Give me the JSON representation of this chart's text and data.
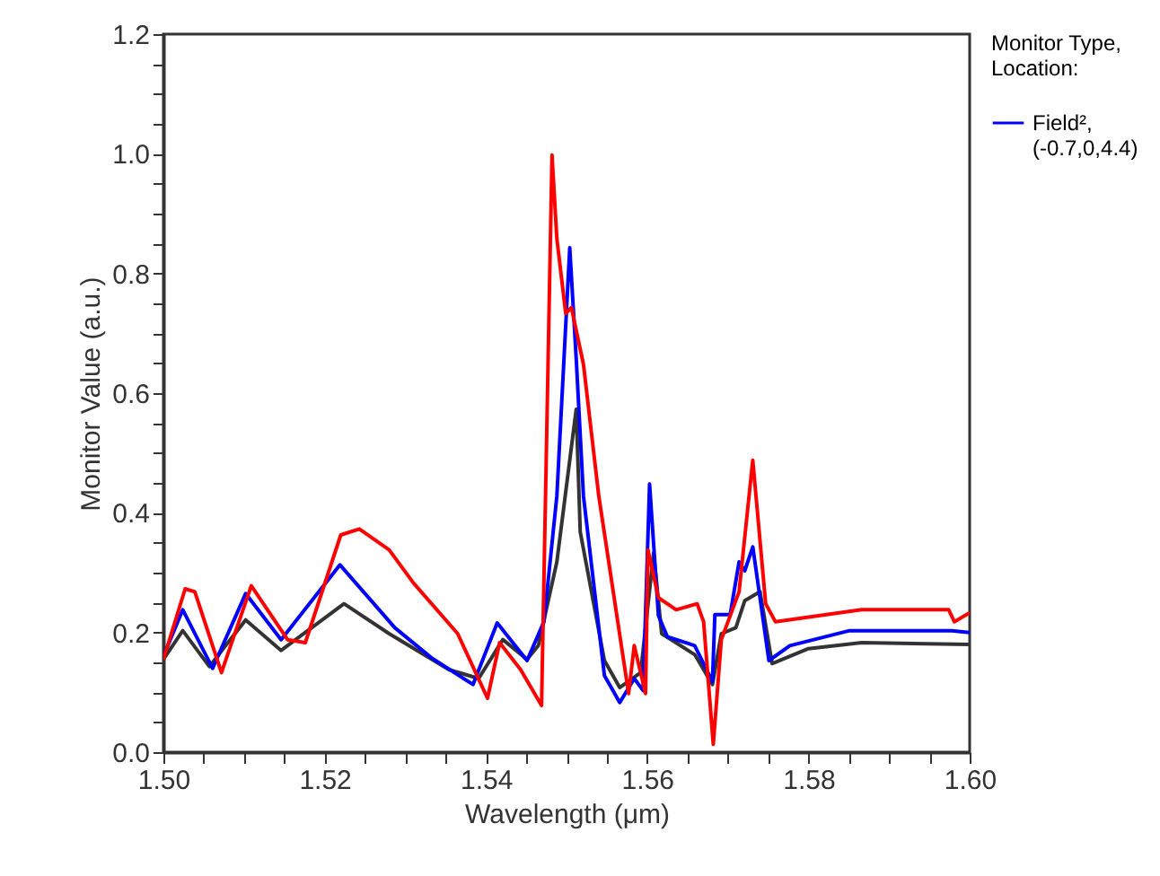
{
  "chart_data": {
    "type": "line",
    "xlabel": "Wavelength (μm)",
    "ylabel": "Monitor Value (a.u.)",
    "legend_title": "Monitor Type, Location:",
    "legend": "right",
    "grid": false,
    "line_style": "solid",
    "xlim": [
      1.5,
      1.6
    ],
    "xticks": [
      {
        "value": 1.5,
        "label": "1.50"
      },
      {
        "value": 1.505,
        "label": null
      },
      {
        "value": 1.51,
        "label": null
      },
      {
        "value": 1.515,
        "label": null
      },
      {
        "value": 1.52,
        "label": "1.52"
      },
      {
        "value": 1.525,
        "label": null
      },
      {
        "value": 1.53,
        "label": null
      },
      {
        "value": 1.535,
        "label": null
      },
      {
        "value": 1.54,
        "label": "1.54"
      },
      {
        "value": 1.545,
        "label": null
      },
      {
        "value": 1.55,
        "label": null
      },
      {
        "value": 1.555,
        "label": null
      },
      {
        "value": 1.56,
        "label": "1.56"
      },
      {
        "value": 1.565,
        "label": null
      },
      {
        "value": 1.57,
        "label": null
      },
      {
        "value": 1.575,
        "label": null
      },
      {
        "value": 1.58,
        "label": "1.58"
      },
      {
        "value": 1.585,
        "label": null
      },
      {
        "value": 1.59,
        "label": null
      },
      {
        "value": 1.595,
        "label": null
      },
      {
        "value": 1.6,
        "label": "1.60"
      }
    ],
    "ylim": [
      0,
      1.2
    ],
    "yticks": [
      {
        "value": 0,
        "label": "0.0"
      },
      {
        "value": 0.05,
        "label": null
      },
      {
        "value": 0.1,
        "label": null
      },
      {
        "value": 0.15,
        "label": null
      },
      {
        "value": 0.2,
        "label": "0.2"
      },
      {
        "value": 0.25,
        "label": null
      },
      {
        "value": 0.3,
        "label": null
      },
      {
        "value": 0.35,
        "label": null
      },
      {
        "value": 0.4,
        "label": "0.4"
      },
      {
        "value": 0.45,
        "label": null
      },
      {
        "value": 0.5,
        "label": null
      },
      {
        "value": 0.55,
        "label": null
      },
      {
        "value": 0.6,
        "label": "0.6"
      },
      {
        "value": 0.65,
        "label": null
      },
      {
        "value": 0.7,
        "label": null
      },
      {
        "value": 0.75,
        "label": null
      },
      {
        "value": 0.8,
        "label": "0.8"
      },
      {
        "value": 0.85,
        "label": null
      },
      {
        "value": 0.9,
        "label": null
      },
      {
        "value": 0.95,
        "label": null
      },
      {
        "value": 1.0,
        "label": "1.0"
      },
      {
        "value": 1.05,
        "label": null
      },
      {
        "value": 1.1,
        "label": null
      },
      {
        "value": 1.15,
        "label": null
      },
      {
        "value": 1.2,
        "label": "1.2"
      }
    ],
    "series": [
      {
        "color": "#333333",
        "x": [
          1.5,
          1.5024,
          1.5057,
          1.5102,
          1.5146,
          1.5224,
          1.528,
          1.5354,
          1.5391,
          1.5421,
          1.5451,
          1.5465,
          1.5488,
          1.5512,
          1.5517,
          1.5547,
          1.5566,
          1.5592,
          1.5608,
          1.5618,
          1.5659,
          1.5681,
          1.5692,
          1.571,
          1.5721,
          1.574,
          1.5755,
          1.58,
          1.5866,
          1.6
        ],
        "values": [
          0.155,
          0.203,
          0.143,
          0.221,
          0.17,
          0.248,
          0.198,
          0.138,
          0.123,
          0.188,
          0.155,
          0.178,
          0.318,
          0.573,
          0.368,
          0.153,
          0.108,
          0.133,
          0.333,
          0.198,
          0.163,
          0.113,
          0.198,
          0.208,
          0.253,
          0.268,
          0.148,
          0.173,
          0.183,
          0.18
        ]
      },
      {
        "name": "Field², (-0.7,0,4.4)",
        "color": "#0000ff",
        "x": [
          1.5,
          1.5024,
          1.5061,
          1.5102,
          1.5146,
          1.5219,
          1.5287,
          1.5332,
          1.5384,
          1.5414,
          1.5451,
          1.5472,
          1.5488,
          1.5504,
          1.5512,
          1.5521,
          1.5547,
          1.5566,
          1.5584,
          1.5595,
          1.5603,
          1.5614,
          1.5625,
          1.5659,
          1.5681,
          1.5684,
          1.5703,
          1.5714,
          1.5721,
          1.5731,
          1.5751,
          1.5777,
          1.5851,
          1.5978,
          1.6
        ],
        "values": [
          0.16,
          0.238,
          0.14,
          0.265,
          0.188,
          0.313,
          0.208,
          0.158,
          0.113,
          0.216,
          0.153,
          0.218,
          0.428,
          0.843,
          0.658,
          0.428,
          0.128,
          0.083,
          0.123,
          0.103,
          0.448,
          0.228,
          0.193,
          0.178,
          0.118,
          0.23,
          0.23,
          0.318,
          0.303,
          0.343,
          0.153,
          0.178,
          0.203,
          0.203,
          0.2
        ]
      },
      {
        "color": "#ff0000",
        "x": [
          1.5,
          1.5027,
          1.5039,
          1.5072,
          1.5109,
          1.5154,
          1.5176,
          1.522,
          1.5243,
          1.528,
          1.531,
          1.5365,
          1.5402,
          1.5417,
          1.5443,
          1.5469,
          1.5482,
          1.5488,
          1.5499,
          1.5506,
          1.5521,
          1.554,
          1.5577,
          1.5584,
          1.5598,
          1.5601,
          1.5614,
          1.5636,
          1.5662,
          1.567,
          1.5682,
          1.5692,
          1.5714,
          1.5731,
          1.5747,
          1.5759,
          1.5866,
          1.5974,
          1.5981,
          1.6
        ],
        "values": [
          0.155,
          0.273,
          0.268,
          0.133,
          0.278,
          0.188,
          0.183,
          0.363,
          0.373,
          0.338,
          0.283,
          0.198,
          0.09,
          0.183,
          0.138,
          0.078,
          0.998,
          0.858,
          0.733,
          0.743,
          0.648,
          0.428,
          0.098,
          0.178,
          0.098,
          0.338,
          0.258,
          0.238,
          0.248,
          0.218,
          0.013,
          0.188,
          0.268,
          0.488,
          0.248,
          0.218,
          0.238,
          0.238,
          0.218,
          0.233
        ]
      }
    ]
  }
}
